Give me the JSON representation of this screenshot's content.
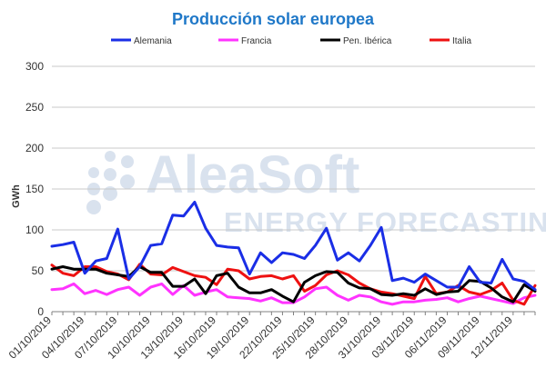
{
  "chart_data": {
    "type": "line",
    "title": "Producción solar europea",
    "ylabel": "GWh",
    "ylim": [
      0,
      300
    ],
    "yticks": [
      0,
      50,
      100,
      150,
      200,
      250,
      300
    ],
    "grid": true,
    "legend_position": "top",
    "x": [
      "01/10/2019",
      "02/10/2019",
      "03/10/2019",
      "04/10/2019",
      "05/10/2019",
      "06/10/2019",
      "07/10/2019",
      "08/10/2019",
      "09/10/2019",
      "10/10/2019",
      "11/10/2019",
      "12/10/2019",
      "13/10/2019",
      "14/10/2019",
      "15/10/2019",
      "16/10/2019",
      "17/10/2019",
      "18/10/2019",
      "19/10/2019",
      "20/10/2019",
      "21/10/2019",
      "22/10/2019",
      "23/10/2019",
      "24/10/2019",
      "25/10/2019",
      "26/10/2019",
      "27/10/2019",
      "28/10/2019",
      "29/10/2019",
      "30/10/2019",
      "31/10/2019",
      "01/11/2019",
      "02/11/2019",
      "03/11/2019",
      "04/11/2019",
      "05/11/2019",
      "06/11/2019",
      "07/11/2019",
      "08/11/2019",
      "09/11/2019",
      "10/11/2019",
      "11/11/2019",
      "12/11/2019",
      "13/11/2019",
      "14/11/2019"
    ],
    "xtick_labels": [
      "01/10/2019",
      "04/10/2019",
      "07/10/2019",
      "10/10/2019",
      "13/10/2019",
      "16/10/2019",
      "19/10/2019",
      "22/10/2019",
      "25/10/2019",
      "28/10/2019",
      "31/10/2019",
      "03/11/2019",
      "06/11/2019",
      "09/11/2019",
      "12/11/2019"
    ],
    "series": [
      {
        "name": "Alemania",
        "color": "#1a2ee6",
        "values": [
          80,
          82,
          85,
          47,
          62,
          65,
          101,
          40,
          55,
          81,
          83,
          118,
          117,
          134,
          102,
          81,
          79,
          78,
          46,
          72,
          60,
          72,
          70,
          65,
          81,
          102,
          63,
          72,
          62,
          81,
          103,
          38,
          41,
          36,
          46,
          38,
          30,
          30,
          55,
          36,
          35,
          64,
          40,
          37,
          27
        ]
      },
      {
        "name": "Francia",
        "color": "#ff33ff",
        "values": [
          27,
          28,
          34,
          22,
          26,
          21,
          27,
          30,
          20,
          30,
          34,
          21,
          32,
          20,
          24,
          27,
          18,
          17,
          16,
          13,
          17,
          11,
          11,
          18,
          28,
          30,
          20,
          14,
          20,
          18,
          12,
          9,
          12,
          12,
          14,
          15,
          17,
          12,
          16,
          19,
          16,
          13,
          10,
          17,
          20
        ]
      },
      {
        "name": "Pen. Ibérica",
        "color": "#000000",
        "values": [
          52,
          55,
          52,
          52,
          52,
          47,
          45,
          43,
          55,
          48,
          48,
          31,
          31,
          40,
          22,
          44,
          47,
          30,
          23,
          23,
          27,
          19,
          12,
          36,
          44,
          49,
          48,
          35,
          29,
          28,
          21,
          20,
          22,
          20,
          28,
          21,
          24,
          25,
          38,
          37,
          29,
          18,
          12,
          33,
          25
        ]
      },
      {
        "name": "Italia",
        "color": "#ee1111",
        "values": [
          57,
          47,
          44,
          55,
          55,
          49,
          46,
          39,
          58,
          46,
          45,
          54,
          49,
          44,
          42,
          33,
          52,
          50,
          40,
          43,
          44,
          40,
          44,
          25,
          32,
          45,
          50,
          45,
          35,
          28,
          24,
          22,
          19,
          16,
          43,
          22,
          24,
          32,
          24,
          21,
          26,
          35,
          14,
          9,
          32
        ]
      }
    ]
  },
  "watermark": {
    "brand": "AleaSoft",
    "tagline": "ENERGY FORECASTING"
  }
}
